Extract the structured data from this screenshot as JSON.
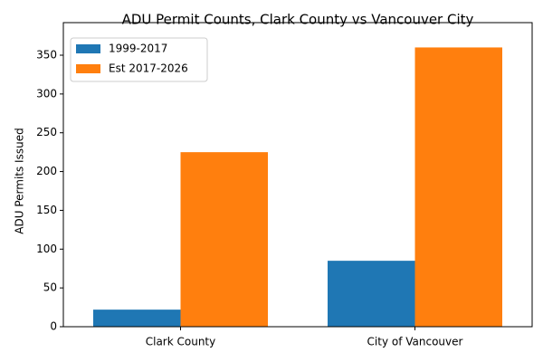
{
  "chart_data": {
    "type": "bar",
    "title": "ADU Permit Counts, Clark County vs Vancouver City",
    "y_label": "ADU Permits Issued",
    "categories": [
      "Clark County",
      "City of Vancouver"
    ],
    "series": [
      {
        "name": "1999-2017",
        "color": "#1f77b4",
        "values": [
          22,
          85
        ]
      },
      {
        "name": "Est 2017-2026",
        "color": "#ff7f0e",
        "values": [
          225,
          360
        ]
      }
    ],
    "ylim": [
      0,
      378
    ],
    "yticks": [
      0,
      50,
      100,
      150,
      200,
      250,
      300,
      350
    ],
    "legend": "upper-left"
  }
}
